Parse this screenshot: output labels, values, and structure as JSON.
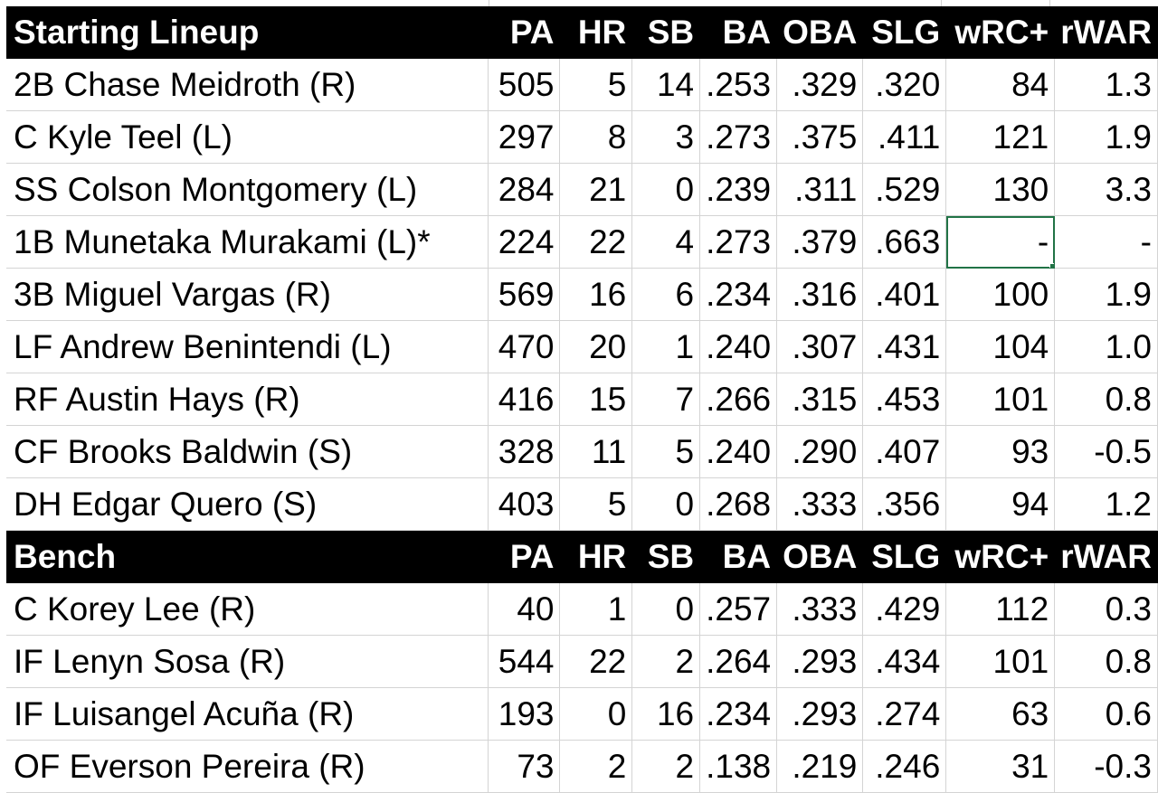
{
  "columns": [
    "PA",
    "HR",
    "SB",
    "BA",
    "OBA",
    "SLG",
    "wRC+",
    "rWAR"
  ],
  "sections": [
    {
      "title": "Starting Lineup",
      "rows": [
        {
          "player": "2B Chase Meidroth (R)",
          "stats": [
            "505",
            "5",
            "14",
            ".253",
            ".329",
            ".320",
            "84",
            "1.3"
          ]
        },
        {
          "player": "C Kyle Teel (L)",
          "stats": [
            "297",
            "8",
            "3",
            ".273",
            ".375",
            ".411",
            "121",
            "1.9"
          ]
        },
        {
          "player": "SS Colson Montgomery (L)",
          "stats": [
            "284",
            "21",
            "0",
            ".239",
            ".311",
            ".529",
            "130",
            "3.3"
          ]
        },
        {
          "player": "1B Munetaka Murakami (L)*",
          "stats": [
            "224",
            "22",
            "4",
            ".273",
            ".379",
            ".663",
            "-",
            "-"
          ]
        },
        {
          "player": "3B Miguel Vargas (R)",
          "stats": [
            "569",
            "16",
            "6",
            ".234",
            ".316",
            ".401",
            "100",
            "1.9"
          ]
        },
        {
          "player": "LF Andrew Benintendi (L)",
          "stats": [
            "470",
            "20",
            "1",
            ".240",
            ".307",
            ".431",
            "104",
            "1.0"
          ]
        },
        {
          "player": "RF Austin Hays (R)",
          "stats": [
            "416",
            "15",
            "7",
            ".266",
            ".315",
            ".453",
            "101",
            "0.8"
          ]
        },
        {
          "player": "CF Brooks Baldwin (S)",
          "stats": [
            "328",
            "11",
            "5",
            ".240",
            ".290",
            ".407",
            "93",
            "-0.5"
          ]
        },
        {
          "player": "DH Edgar Quero (S)",
          "stats": [
            "403",
            "5",
            "0",
            ".268",
            ".333",
            ".356",
            "94",
            "1.2"
          ]
        }
      ]
    },
    {
      "title": "Bench",
      "rows": [
        {
          "player": "C Korey Lee (R)",
          "stats": [
            "40",
            "1",
            "0",
            ".257",
            ".333",
            ".429",
            "112",
            "0.3"
          ]
        },
        {
          "player": "IF Lenyn Sosa (R)",
          "stats": [
            "544",
            "22",
            "2",
            ".264",
            ".293",
            ".434",
            "101",
            "0.8"
          ]
        },
        {
          "player": "IF Luisangel Acuña (R)",
          "stats": [
            "193",
            "0",
            "16",
            ".234",
            ".293",
            ".274",
            "63",
            "0.6"
          ]
        },
        {
          "player": "OF Everson Pereira (R)",
          "stats": [
            "73",
            "2",
            "2",
            ".138",
            ".219",
            ".246",
            "31",
            "-0.3"
          ]
        }
      ]
    }
  ],
  "selected_cell": {
    "section": 0,
    "row": 3,
    "col": 6
  },
  "colors": {
    "header_bg": "#000000",
    "header_text": "#ffffff",
    "grid": "#d4d4d4",
    "selection": "#217346"
  }
}
